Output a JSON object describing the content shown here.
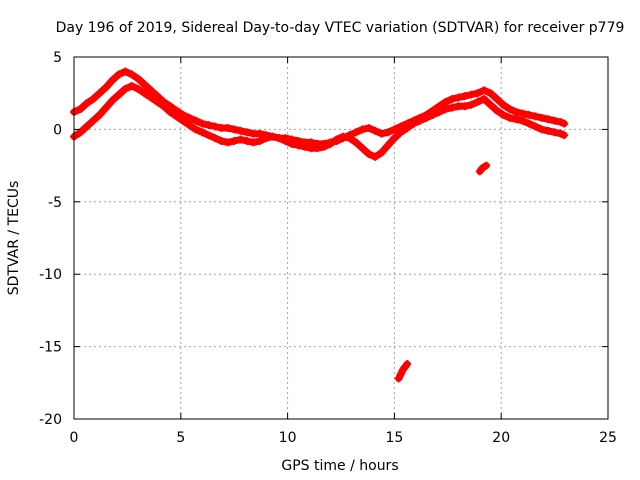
{
  "chart_data": {
    "type": "scatter",
    "title": "Day 196 of 2019, Sidereal Day-to-day VTEC variation (SDTVAR) for receiver p779",
    "xlabel": "GPS time / hours",
    "ylabel": "SDTVAR / TECUs",
    "xlim": [
      0,
      25
    ],
    "ylim": [
      -20,
      5
    ],
    "xticks": [
      0,
      5,
      10,
      15,
      20,
      25
    ],
    "yticks": [
      -20,
      -15,
      -10,
      -5,
      0,
      5
    ],
    "grid": true,
    "legend": "none",
    "series": [
      {
        "name": "SDTVAR main trace",
        "color": "#ff0000",
        "marker": "plus",
        "x": [
          0.0,
          0.3,
          0.6,
          0.9,
          1.2,
          1.5,
          1.8,
          2.1,
          2.4,
          2.7,
          3.0,
          3.3,
          3.6,
          3.9,
          4.2,
          4.5,
          4.8,
          5.1,
          5.4,
          5.7,
          6.0,
          6.3,
          6.6,
          6.9,
          7.2,
          7.5,
          7.8,
          8.1,
          8.4,
          8.7,
          9.0,
          9.3,
          9.6,
          9.9,
          10.2,
          10.5,
          10.8,
          11.1,
          11.4,
          11.7,
          12.0,
          12.3,
          12.6,
          12.9,
          13.2,
          13.5,
          13.8,
          14.1,
          14.4,
          14.7,
          15.0,
          15.3,
          15.6,
          15.9,
          16.2,
          16.5,
          16.8,
          17.1,
          17.4,
          17.7,
          18.0,
          18.3,
          18.6,
          18.9,
          19.2,
          19.5,
          19.8,
          20.1,
          20.4,
          20.7,
          21.0,
          21.3,
          21.6,
          21.9,
          22.2,
          22.5,
          22.8,
          22.95
        ],
        "y": [
          1.2,
          1.4,
          1.8,
          2.1,
          2.5,
          2.9,
          3.4,
          3.8,
          4.0,
          3.8,
          3.5,
          3.1,
          2.7,
          2.3,
          1.9,
          1.6,
          1.3,
          1.0,
          0.8,
          0.6,
          0.4,
          0.3,
          0.2,
          0.1,
          0.1,
          0.0,
          -0.1,
          -0.2,
          -0.3,
          -0.3,
          -0.4,
          -0.5,
          -0.6,
          -0.6,
          -0.7,
          -0.8,
          -0.9,
          -0.9,
          -1.0,
          -1.0,
          -0.9,
          -0.8,
          -0.6,
          -0.4,
          -0.2,
          0.0,
          0.1,
          -0.1,
          -0.3,
          -0.2,
          0.0,
          0.2,
          0.4,
          0.6,
          0.8,
          1.0,
          1.3,
          1.6,
          1.9,
          2.1,
          2.2,
          2.3,
          2.4,
          2.5,
          2.7,
          2.5,
          2.1,
          1.7,
          1.4,
          1.2,
          1.1,
          1.0,
          0.9,
          0.8,
          0.7,
          0.6,
          0.5,
          0.4
        ]
      },
      {
        "name": "SDTVAR lower trace",
        "color": "#ff0000",
        "marker": "plus",
        "x": [
          0.0,
          0.3,
          0.6,
          0.9,
          1.2,
          1.5,
          1.8,
          2.1,
          2.4,
          2.7,
          3.0,
          3.3,
          3.6,
          3.9,
          4.2,
          4.5,
          4.8,
          5.1,
          5.4,
          5.7,
          6.0,
          6.3,
          6.6,
          6.9,
          7.2,
          7.5,
          7.8,
          8.1,
          8.4,
          8.7,
          9.0,
          9.3,
          9.6,
          9.9,
          10.2,
          10.5,
          10.8,
          11.1,
          11.4,
          11.7,
          12.0,
          12.3,
          12.6,
          12.9,
          13.2,
          13.5,
          13.8,
          14.1,
          14.4,
          14.7,
          15.0,
          15.3,
          15.6,
          15.9,
          16.2,
          16.5,
          16.8,
          17.1,
          17.4,
          17.7,
          18.0,
          18.3,
          18.6,
          18.9,
          19.2,
          19.5,
          19.8,
          20.1,
          20.4,
          20.7,
          21.0,
          21.3,
          21.6,
          21.9,
          22.2,
          22.5,
          22.8,
          22.95
        ],
        "y": [
          -0.5,
          -0.2,
          0.2,
          0.6,
          1.0,
          1.5,
          2.0,
          2.4,
          2.8,
          3.0,
          2.8,
          2.5,
          2.2,
          1.9,
          1.6,
          1.2,
          0.9,
          0.6,
          0.3,
          0.0,
          -0.2,
          -0.4,
          -0.6,
          -0.8,
          -0.9,
          -0.8,
          -0.7,
          -0.8,
          -0.9,
          -0.8,
          -0.6,
          -0.5,
          -0.6,
          -0.8,
          -1.0,
          -1.1,
          -1.2,
          -1.3,
          -1.3,
          -1.2,
          -1.0,
          -0.7,
          -0.5,
          -0.6,
          -0.9,
          -1.3,
          -1.7,
          -1.9,
          -1.6,
          -1.1,
          -0.6,
          -0.2,
          0.1,
          0.4,
          0.6,
          0.8,
          1.0,
          1.2,
          1.4,
          1.5,
          1.6,
          1.6,
          1.7,
          1.9,
          2.1,
          1.7,
          1.3,
          1.0,
          0.8,
          0.7,
          0.6,
          0.4,
          0.2,
          0.0,
          -0.1,
          -0.2,
          -0.3,
          -0.4
        ]
      },
      {
        "name": "SDTVAR segment near 19.2 h",
        "color": "#ff0000",
        "marker": "plus",
        "x": [
          19.0,
          19.1,
          19.2,
          19.3
        ],
        "y": [
          -2.9,
          -2.7,
          -2.6,
          -2.5
        ]
      },
      {
        "name": "SDTVAR segment near 15.5 h",
        "color": "#ff0000",
        "marker": "plus",
        "x": [
          15.2,
          15.3,
          15.4,
          15.5,
          15.6
        ],
        "y": [
          -17.2,
          -16.9,
          -16.6,
          -16.4,
          -16.2
        ]
      }
    ]
  }
}
